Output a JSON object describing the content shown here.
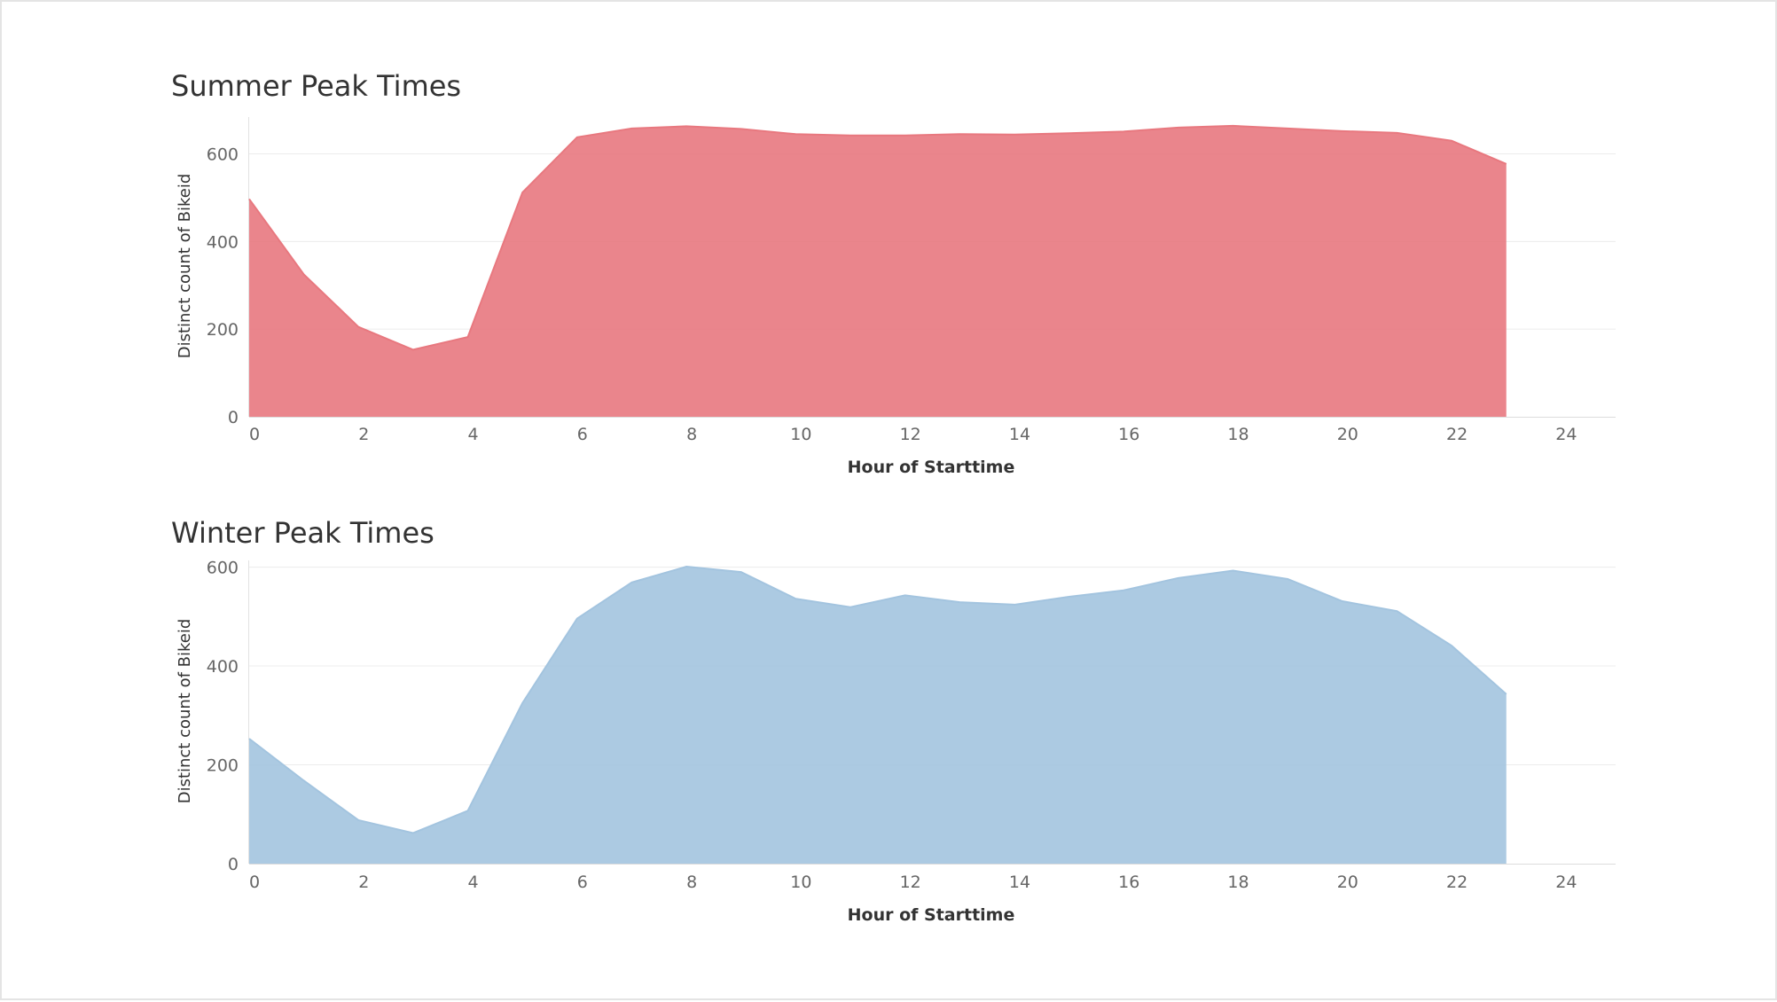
{
  "chart_data": [
    {
      "type": "area",
      "title": "Summer Peak Times",
      "xlabel": "Hour of Starttime",
      "ylabel": "Distinct count of Bikeid",
      "xlim": [
        0,
        25
      ],
      "ylim": [
        0,
        680
      ],
      "x_ticks": [
        0,
        2,
        4,
        6,
        8,
        10,
        12,
        14,
        16,
        18,
        20,
        22,
        24
      ],
      "y_ticks": [
        0,
        200,
        400,
        600
      ],
      "grid": true,
      "color": "#e8787f",
      "x": [
        0,
        1,
        2,
        3,
        4,
        5,
        6,
        7,
        8,
        9,
        10,
        11,
        12,
        13,
        14,
        15,
        16,
        17,
        18,
        19,
        20,
        21,
        22,
        23
      ],
      "values": [
        497,
        325,
        205,
        153,
        182,
        512,
        638,
        658,
        663,
        657,
        645,
        642,
        642,
        645,
        644,
        647,
        651,
        660,
        664,
        658,
        652,
        648,
        630,
        577
      ]
    },
    {
      "type": "area",
      "title": "Winter Peak Times",
      "xlabel": "Hour of Starttime",
      "ylabel": "Distinct count of Bikeid",
      "xlim": [
        0,
        25
      ],
      "ylim": [
        0,
        610
      ],
      "x_ticks": [
        0,
        2,
        4,
        6,
        8,
        10,
        12,
        14,
        16,
        18,
        20,
        22,
        24
      ],
      "y_ticks": [
        0,
        200,
        400,
        600
      ],
      "grid": true,
      "color": "#a3c4df",
      "x": [
        0,
        1,
        2,
        3,
        4,
        5,
        6,
        7,
        8,
        9,
        10,
        11,
        12,
        13,
        14,
        15,
        16,
        17,
        18,
        19,
        20,
        21,
        22,
        23
      ],
      "values": [
        253,
        168,
        88,
        62,
        107,
        325,
        496,
        569,
        601,
        590,
        536,
        519,
        543,
        529,
        524,
        540,
        553,
        578,
        593,
        576,
        531,
        511,
        441,
        343
      ]
    }
  ]
}
